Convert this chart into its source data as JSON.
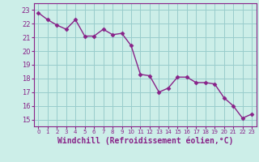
{
  "x": [
    0,
    1,
    2,
    3,
    4,
    5,
    6,
    7,
    8,
    9,
    10,
    11,
    12,
    13,
    14,
    15,
    16,
    17,
    18,
    19,
    20,
    21,
    22,
    23
  ],
  "y": [
    22.8,
    22.3,
    21.9,
    21.6,
    22.3,
    21.1,
    21.1,
    21.6,
    21.2,
    21.3,
    20.4,
    18.3,
    18.2,
    17.0,
    17.3,
    18.1,
    18.1,
    17.7,
    17.7,
    17.6,
    16.6,
    16.0,
    15.1,
    15.4
  ],
  "line_color": "#882288",
  "marker": "D",
  "markersize": 2.5,
  "linewidth": 1.0,
  "bg_color": "#cceee8",
  "grid_color": "#99cccc",
  "xlabel": "Windchill (Refroidissement éolien,°C)",
  "xlabel_fontsize": 7,
  "xlabel_color": "#882288",
  "ylabel_ticks": [
    15,
    16,
    17,
    18,
    19,
    20,
    21,
    22,
    23
  ],
  "xtick_labels": [
    "0",
    "1",
    "2",
    "3",
    "4",
    "5",
    "6",
    "7",
    "8",
    "9",
    "10",
    "11",
    "12",
    "13",
    "14",
    "15",
    "16",
    "17",
    "18",
    "19",
    "20",
    "21",
    "22",
    "23"
  ],
  "ylim": [
    14.5,
    23.5
  ],
  "xlim": [
    -0.5,
    23.5
  ]
}
